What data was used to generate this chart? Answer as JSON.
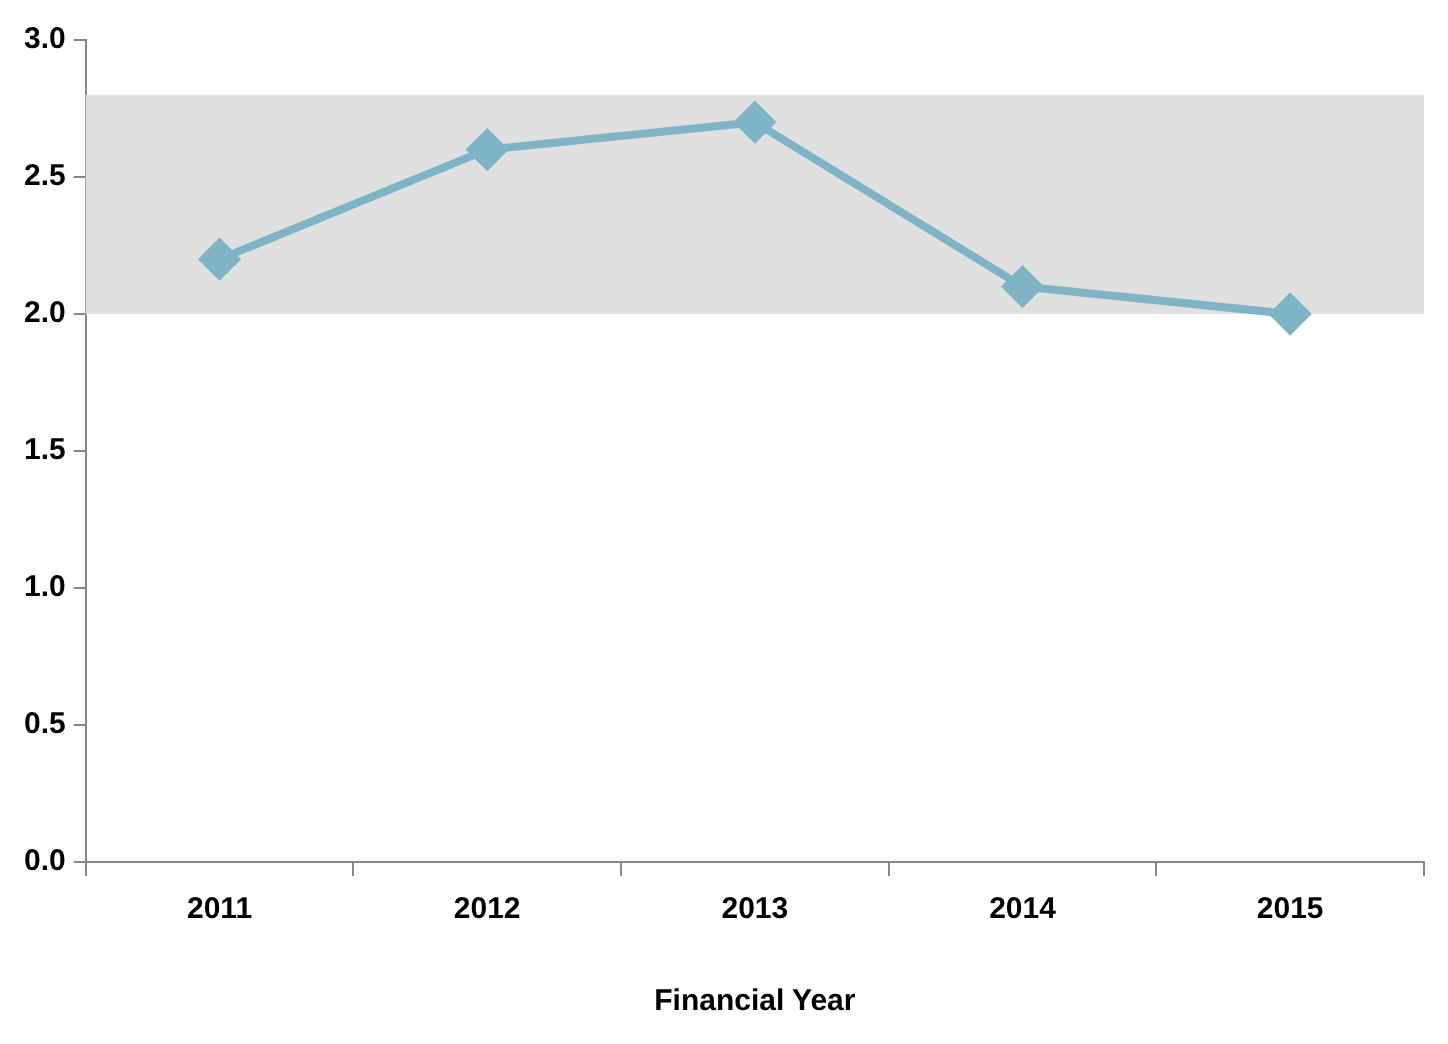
{
  "chart_data": {
    "type": "line",
    "xlabel": "Financial Year",
    "categories": [
      "2011",
      "2012",
      "2013",
      "2014",
      "2015"
    ],
    "series": [
      {
        "color": "#7fb4c6",
        "values": [
          2.2,
          2.6,
          2.7,
          2.1,
          2.0
        ]
      }
    ],
    "ylim": [
      0,
      3
    ],
    "yticks": [
      {
        "value": 0,
        "label": "0.0"
      },
      {
        "value": 0.5,
        "label": "0.5"
      },
      {
        "value": 1,
        "label": "1.0"
      },
      {
        "value": 1.5,
        "label": "1.5"
      },
      {
        "value": 2,
        "label": "2.0"
      },
      {
        "value": 2.5,
        "label": "2.5"
      },
      {
        "value": 3,
        "label": "3.0"
      }
    ],
    "bands": [
      {
        "axis": "y",
        "from": 2.0,
        "to": 2.8,
        "color": "#e0e0e0"
      }
    ],
    "grid": false,
    "legend": false,
    "marker": "diamond",
    "line_style": "solid"
  }
}
